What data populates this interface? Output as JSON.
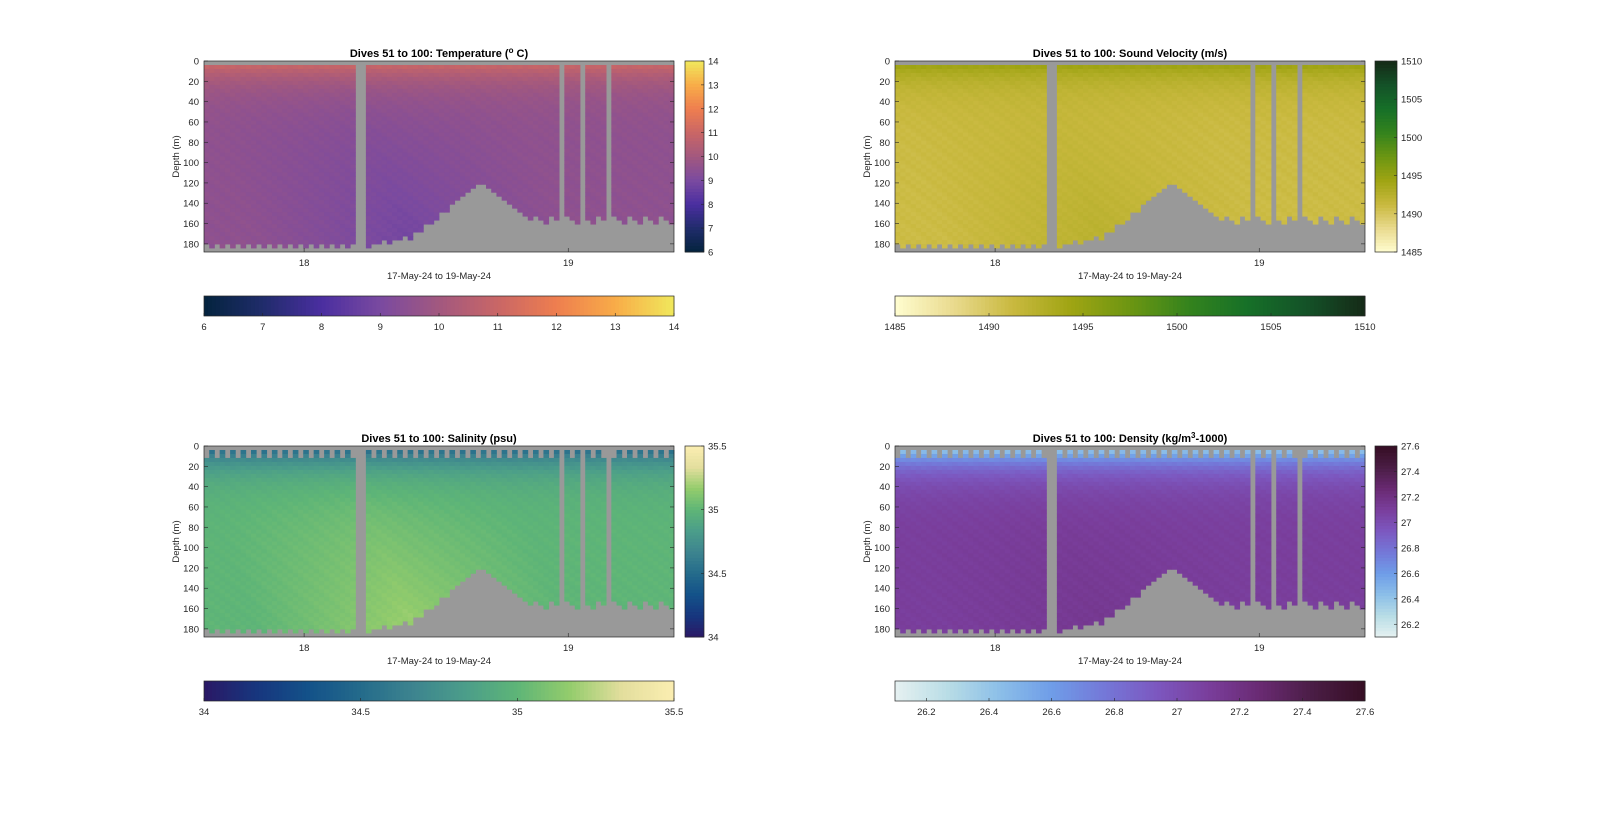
{
  "chart_data": [
    {
      "type": "heatmap",
      "title": "Dives 51 to 100: Temperature (",
      "title_sup": "o",
      "title_tail": " C)",
      "xlabel": "17-May-24 to 19-May-24",
      "ylabel": "Depth (m)",
      "xticks": [
        "18",
        "19"
      ],
      "yticks": [
        "0",
        "20",
        "40",
        "60",
        "80",
        "100",
        "120",
        "140",
        "160",
        "180"
      ],
      "ylim": [
        0,
        188
      ],
      "colormap": "thermal",
      "clim": [
        6,
        14
      ],
      "colorbar_vertical_ticks": [
        "14",
        "13",
        "12",
        "11",
        "10",
        "9",
        "8",
        "7",
        "6"
      ],
      "colorbar_horizontal_ticks": [
        "6",
        "7",
        "8",
        "9",
        "10",
        "11",
        "12",
        "13",
        "14"
      ],
      "surface_value": 11.2,
      "deep_value": 9.5,
      "lower_value": 8.8,
      "missing_color": "#999999"
    },
    {
      "type": "heatmap",
      "title": "Dives 51 to 100: Sound Velocity (m/s)",
      "title_sup": "",
      "title_tail": "",
      "xlabel": "17-May-24 to 19-May-24",
      "ylabel": "Depth (m)",
      "xticks": [
        "18",
        "19"
      ],
      "yticks": [
        "0",
        "20",
        "40",
        "60",
        "80",
        "100",
        "120",
        "140",
        "160",
        "180"
      ],
      "ylim": [
        0,
        188
      ],
      "colormap": "speed",
      "clim": [
        1485,
        1510
      ],
      "colorbar_vertical_ticks": [
        "1510",
        "1505",
        "1500",
        "1495",
        "1490",
        "1485"
      ],
      "colorbar_horizontal_ticks": [
        "1485",
        "1490",
        "1495",
        "1500",
        "1505",
        "1510"
      ],
      "surface_value": 1495,
      "deep_value": 1491,
      "lower_value": 1492.5,
      "missing_color": "#999999"
    },
    {
      "type": "heatmap",
      "title": "Dives 51 to 100: Salinity (psu)",
      "title_sup": "",
      "title_tail": "",
      "xlabel": "17-May-24 to 19-May-24",
      "ylabel": "Depth (m)",
      "xticks": [
        "18",
        "19"
      ],
      "yticks": [
        "0",
        "20",
        "40",
        "60",
        "80",
        "100",
        "120",
        "140",
        "160",
        "180"
      ],
      "ylim": [
        0,
        188
      ],
      "colormap": "haline",
      "clim": [
        34,
        35.5
      ],
      "colorbar_vertical_ticks": [
        "35.5",
        "35",
        "34.5",
        "34"
      ],
      "colorbar_horizontal_ticks": [
        "34",
        "34.5",
        "35",
        "35.5"
      ],
      "surface_value": 34.45,
      "deep_value": 35.0,
      "lower_value": 35.2,
      "missing_color": "#999999"
    },
    {
      "type": "heatmap",
      "title": "Dives 51 to 100: Density (kg/m",
      "title_sup": "3",
      "title_tail": "-1000)",
      "xlabel": "17-May-24 to 19-May-24",
      "ylabel": "Depth (m)",
      "xticks": [
        "18",
        "19"
      ],
      "yticks": [
        "0",
        "20",
        "40",
        "60",
        "80",
        "100",
        "120",
        "140",
        "160",
        "180"
      ],
      "ylim": [
        0,
        188
      ],
      "colormap": "dense",
      "clim": [
        26.1,
        27.6
      ],
      "colorbar_vertical_ticks": [
        "27.6",
        "27.4",
        "27.2",
        "27",
        "26.8",
        "26.6",
        "26.4",
        "26.2"
      ],
      "colorbar_horizontal_ticks": [
        "26.2",
        "26.4",
        "26.6",
        "26.8",
        "27",
        "27.2",
        "27.4",
        "27.6"
      ],
      "surface_value": 26.3,
      "deep_value": 27.1,
      "lower_value": 27.15,
      "missing_color": "#999999"
    }
  ]
}
